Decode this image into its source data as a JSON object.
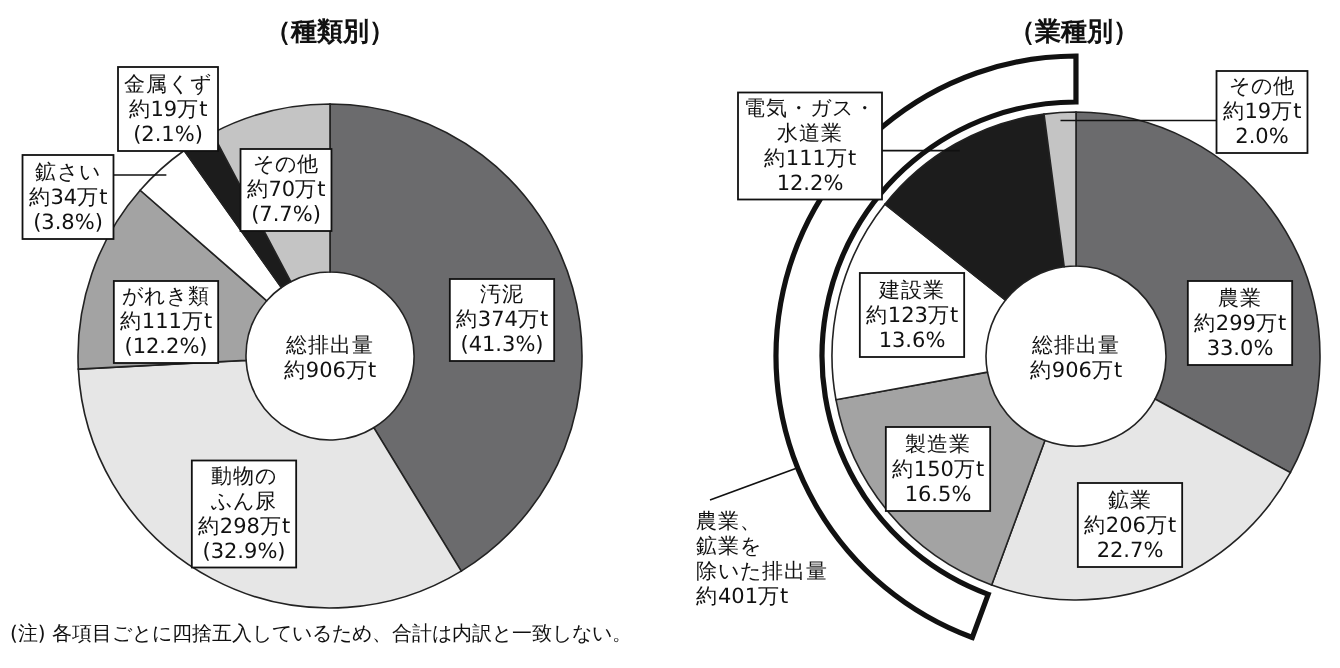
{
  "chart_data": [
    {
      "type": "donut",
      "title": "（種類別）",
      "categories": [
        "汚泥",
        "動物のふん尿",
        "がれき類",
        "鉱さい",
        "金属くず",
        "その他"
      ],
      "values": [
        374,
        298,
        111,
        34,
        19,
        70
      ],
      "colors": [
        "#6b6b6d",
        "#e6e6e6",
        "#a3a3a3",
        "#ffffff",
        "#1c1c1c",
        "#c4c4c4"
      ],
      "value_labels": [
        "約374万t\n(41.3%)",
        "約298万t\n(32.9%)",
        "約111万t\n(12.2%)",
        "約34万t\n(3.8%)",
        "約19万t\n(2.1%)",
        "約70万t\n(7.7%)"
      ],
      "annotations": [
        "総排出量",
        "約906万t",
        "(注) 各項目ごとに四捨五入しているため、合計は内訳と一致しない。"
      ]
    },
    {
      "type": "donut",
      "title": "（業種別）",
      "categories": [
        "農業",
        "鉱業",
        "製造業",
        "建設業",
        "電気・ガス・水道業",
        "その他"
      ],
      "values": [
        299,
        206,
        150,
        123,
        111,
        19
      ],
      "colors": [
        "#6b6b6d",
        "#e6e6e6",
        "#a3a3a3",
        "#ffffff",
        "#1c1c1c",
        "#c4c4c4"
      ],
      "value_labels": [
        "約299万t\n33.0%",
        "約206万t\n22.7%",
        "約150万t\n16.5%",
        "約123万t\n13.6%",
        "約111万t\n12.2%",
        "約19万t\n2.0%"
      ],
      "annotations": [
        "総排出量",
        "約906万t",
        "農業、鉱業を除いた排出量",
        "約401万t"
      ]
    }
  ]
}
